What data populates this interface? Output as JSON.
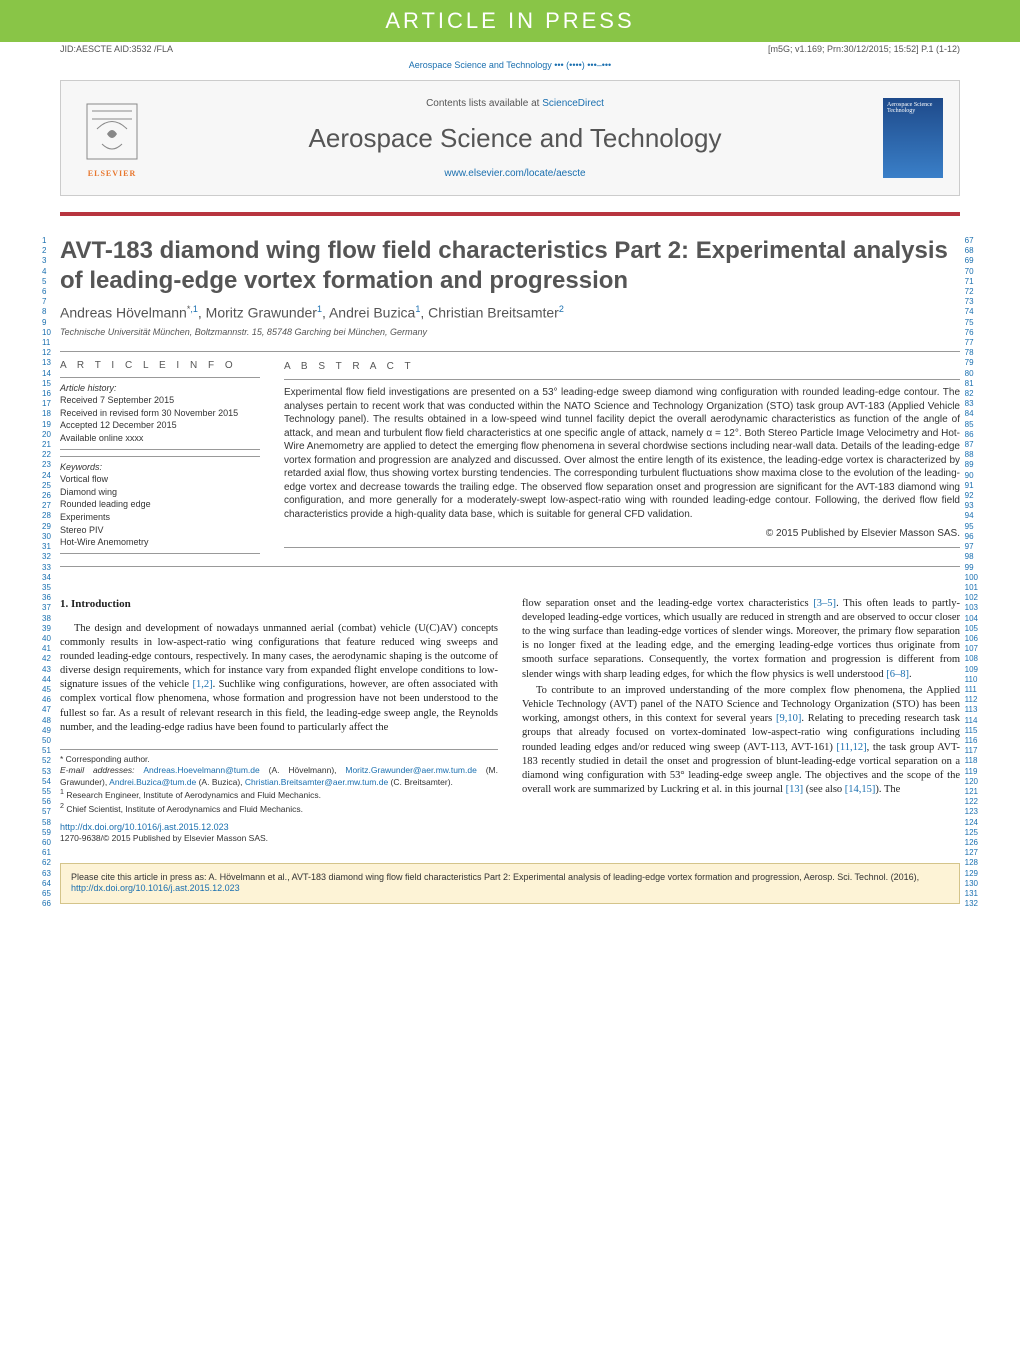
{
  "banner": "ARTICLE IN PRESS",
  "jid": "JID:AESCTE   AID:3532 /FLA",
  "m5g": "[m5G; v1.169; Prn:30/12/2015; 15:52] P.1 (1-12)",
  "journal_ref": "Aerospace Science and Technology ••• (••••) •••–•••",
  "contents_prefix": "Contents lists available at ",
  "contents_link": "ScienceDirect",
  "journal_name": "Aerospace Science and Technology",
  "journal_url": "www.elsevier.com/locate/aescte",
  "elsevier": "ELSEVIER",
  "cover_text": "Aerospace Science Technology",
  "title": "AVT-183 diamond wing flow field characteristics Part 2: Experimental analysis of leading-edge vortex formation and progression",
  "authors": [
    {
      "name": "Andreas Hövelmann",
      "marks": "*,1"
    },
    {
      "name": "Moritz Grawunder",
      "marks": "1"
    },
    {
      "name": "Andrei Buzica",
      "marks": "1"
    },
    {
      "name": "Christian Breitsamter",
      "marks": "2"
    }
  ],
  "affiliation": "Technische Universität München, Boltzmannstr. 15, 85748 Garching bei München, Germany",
  "info_label": "A R T I C L E   I N F O",
  "abstract_label": "A B S T R A C T",
  "history_hdr": "Article history:",
  "history": [
    "Received 7 September 2015",
    "Received in revised form 30 November 2015",
    "Accepted 12 December 2015",
    "Available online xxxx"
  ],
  "keywords_hdr": "Keywords:",
  "keywords": [
    "Vortical flow",
    "Diamond wing",
    "Rounded leading edge",
    "Experiments",
    "Stereo PIV",
    "Hot-Wire Anemometry"
  ],
  "abstract": "Experimental flow field investigations are presented on a 53° leading-edge sweep diamond wing configuration with rounded leading-edge contour. The analyses pertain to recent work that was conducted within the NATO Science and Technology Organization (STO) task group AVT-183 (Applied Vehicle Technology panel). The results obtained in a low-speed wind tunnel facility depict the overall aerodynamic characteristics as function of the angle of attack, and mean and turbulent flow field characteristics at one specific angle of attack, namely α = 12°. Both Stereo Particle Image Velocimetry and Hot-Wire Anemometry are applied to detect the emerging flow phenomena in several chordwise sections including near-wall data. Details of the leading-edge vortex formation and progression are analyzed and discussed. Over almost the entire length of its existence, the leading-edge vortex is characterized by retarded axial flow, thus showing vortex bursting tendencies. The corresponding turbulent fluctuations show maxima close to the evolution of the leading-edge vortex and decrease towards the trailing edge. The observed flow separation onset and progression are significant for the AVT-183 diamond wing configuration, and more generally for a moderately-swept low-aspect-ratio wing with rounded leading-edge contour. Following, the derived flow field characteristics provide a high-quality data base, which is suitable for general CFD validation.",
  "abstract_copy": "© 2015 Published by Elsevier Masson SAS.",
  "intro_hdr": "1. Introduction",
  "intro_p1": "The design and development of nowadays unmanned aerial (combat) vehicle (U(C)AV) concepts commonly results in low-aspect-ratio wing configurations that feature reduced wing sweeps and rounded leading-edge contours, respectively. In many cases, the aerodynamic shaping is the outcome of diverse design requirements, which for instance vary from expanded flight envelope conditions to low-signature issues of the vehicle ",
  "ref12": "[1,2]",
  "intro_p1b": ". Suchlike wing configurations, however, are often associated with complex vortical flow phenomena, whose formation and progression have not been understood to the fullest so far. As a result of relevant research in this field, the leading-edge sweep angle, the Reynolds number, and the leading-edge radius have been found to particularly affect the",
  "intro_p2a": "flow separation onset and the leading-edge vortex characteristics ",
  "ref35": "[3–5]",
  "intro_p2b": ". This often leads to partly-developed leading-edge vortices, which usually are reduced in strength and are observed to occur closer to the wing surface than leading-edge vortices of slender wings. Moreover, the primary flow separation is no longer fixed at the leading edge, and the emerging leading-edge vortices thus originate from smooth surface separations. Consequently, the vortex formation and progression is different from slender wings with sharp leading edges, for which the flow physics is well understood ",
  "ref68": "[6–8]",
  "intro_p2c": ".",
  "intro_p3a": "To contribute to an improved understanding of the more complex flow phenomena, the Applied Vehicle Technology (AVT) panel of the NATO Science and Technology Organization (STO) has been working, amongst others, in this context for several years ",
  "ref910": "[9,10]",
  "intro_p3b": ". Relating to preceding research task groups that already focused on vortex-dominated low-aspect-ratio wing configurations including rounded leading edges and/or reduced wing sweep (AVT-113, AVT-161) ",
  "ref1112": "[11,12]",
  "intro_p3c": ", the task group AVT-183 recently studied in detail the onset and progression of blunt-leading-edge vortical separation on a diamond wing configuration with 53° leading-edge sweep angle. The objectives and the scope of the overall work are summarized by Luckring et al. in this journal ",
  "ref13": "[13]",
  "intro_p3d": " (see also ",
  "ref1415": "[14,15]",
  "intro_p3e": "). The",
  "fn_star": "* Corresponding author.",
  "fn_email_label": "E-mail addresses: ",
  "emails": [
    {
      "addr": "Andreas.Hoevelmann@tum.de",
      "who": "(A. Hövelmann),"
    },
    {
      "addr": "Moritz.Grawunder@aer.mw.tum.de",
      "who": "(M. Grawunder),"
    },
    {
      "addr": "Andrei.Buzica@tum.de",
      "who": ""
    },
    {
      "addr2who": "(A. Buzica),"
    },
    {
      "addr": "Christian.Breitsamter@aer.mw.tum.de",
      "who": "(C. Breitsamter)."
    }
  ],
  "fn1": "Research Engineer, Institute of Aerodynamics and Fluid Mechanics.",
  "fn2": "Chief Scientist, Institute of Aerodynamics and Fluid Mechanics.",
  "doi": "http://dx.doi.org/10.1016/j.ast.2015.12.023",
  "issn_copy": "1270-9638/© 2015 Published by Elsevier Masson SAS.",
  "cite_box": "Please cite this article in press as: A. Hövelmann et al., AVT-183 diamond wing flow field characteristics Part 2: Experimental analysis of leading-edge vortex formation and progression, Aerosp. Sci. Technol. (2016), ",
  "cite_doi": "http://dx.doi.org/10.1016/j.ast.2015.12.023",
  "lines_left_start": 1,
  "lines_left_end": 66,
  "lines_right_start": 67,
  "lines_right_end": 132,
  "colors": {
    "green": "#89c547",
    "red": "#b8353f",
    "link": "#1a6faf",
    "orange": "#e8772e",
    "citebg": "#fdf3d6"
  }
}
